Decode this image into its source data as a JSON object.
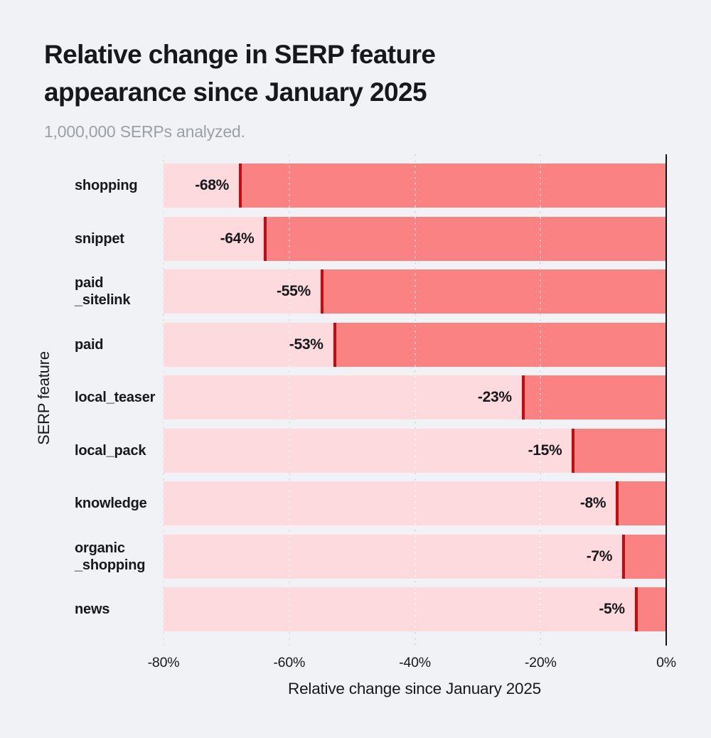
{
  "header": {
    "title_lines": [
      "Relative change in SERP feature",
      "appearance since January 2025"
    ],
    "subtitle": "1,000,000 SERPs analyzed."
  },
  "chart_data": {
    "type": "bar",
    "orientation": "horizontal",
    "title": "Relative change in SERP feature appearance since January 2025",
    "subtitle": "1,000,000 SERPs analyzed.",
    "xlabel": "Relative change since January 2025",
    "ylabel": "SERP feature",
    "xlim": [
      -80,
      0
    ],
    "x_ticks": [
      -80,
      -60,
      -40,
      -20,
      0
    ],
    "x_tick_labels": [
      "-80%",
      "-60%",
      "-40%",
      "-20%",
      "0%"
    ],
    "grid": "dotted vertical gridlines at each tick, solid black axis at 0",
    "legend": "none",
    "categories": [
      "shopping",
      "snippet",
      "paid_sitelink",
      "paid",
      "local_teaser",
      "local_pack",
      "knowledge",
      "organic_shopping",
      "news"
    ],
    "category_label_lines": [
      [
        "shopping"
      ],
      [
        "snippet"
      ],
      [
        "paid",
        "_sitelink"
      ],
      [
        "paid"
      ],
      [
        "local_teaser"
      ],
      [
        "local_pack"
      ],
      [
        "knowledge"
      ],
      [
        "organic",
        "_shopping"
      ],
      [
        "news"
      ]
    ],
    "values": [
      -68,
      -64,
      -55,
      -53,
      -23,
      -15,
      -8,
      -7,
      -5
    ],
    "bar_labels": [
      "-68%",
      "-64%",
      "-55%",
      "-53%",
      "-23%",
      "-15%",
      "-8%",
      "-7%",
      "-5%"
    ]
  },
  "colors": {
    "background": "#f1f2f5",
    "bar_fill": "#fa8282",
    "bar_track": "#fcdade",
    "bar_edge_line": "#c00d11",
    "zero_axis": "#121316",
    "text_primary": "#17181b",
    "subtitle_gray": "#9ba0a8",
    "gridline": "#b9bbc0"
  }
}
